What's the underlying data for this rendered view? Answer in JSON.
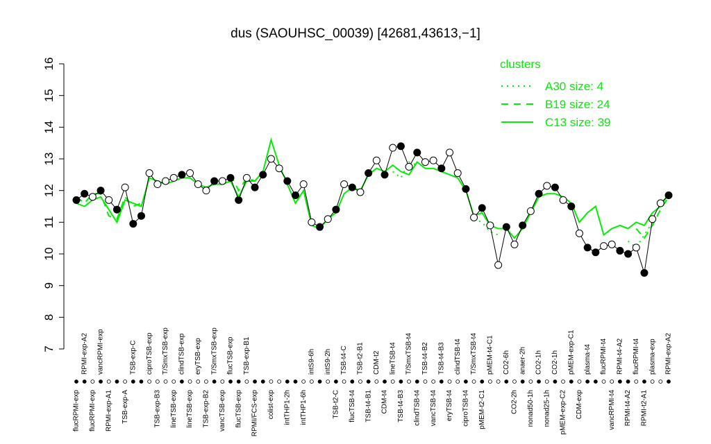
{
  "chart_data": {
    "type": "line",
    "title": "dus (SAOUHSC_00039) [42681,43613,−1]",
    "ylim": [
      7,
      16
    ],
    "yticks": [
      7,
      8,
      9,
      10,
      11,
      12,
      13,
      14,
      15,
      16
    ],
    "legend_title": "clusters",
    "legend_position": "top-right",
    "categories": [
      "flucRPMI-exp",
      "RPMI-exp-A2",
      "flucRPMI-exp",
      "vancRPMI-exp",
      "RPMI-exp-A1",
      null,
      "TSB-exp-A",
      "TSB-exp-C",
      null,
      "ciproTSB-exp",
      "TSB-exp-B3",
      "T/SmxTSB-exp",
      "lineTSB-exp",
      "clindTSB-exp",
      "lineTSB-exp",
      "eryTSB-exp",
      "TSB-exp-B2",
      "T/SmxTSB-exp",
      "vancTSB-exp",
      "flucTSB-exp",
      "flucTSB-exp",
      "TSB-exp-B1",
      "RPMI/FCS-exp",
      null,
      "colist-exp",
      null,
      "intTHP1-2h",
      null,
      "intTHP1-6h",
      "intS9-6h",
      null,
      "intS9-2h",
      "TSB-t2-C",
      "TSB-t4-C",
      "flucTSB-t4",
      "TSB-t2-B1",
      "TSB-t4-B1",
      "CDM-t2",
      "CDM-t4",
      "lineTSB-t4",
      "TSB-t4-B3",
      "T/SmxTSB-t4",
      "clindTSB-t4",
      "TSB-t4-B2",
      "vancTSB-t4",
      "TSB-t4-B3",
      "eryTSB-t4",
      "clindTSB-t4",
      "ciproTSB-t4",
      "T/SmxTSB-t4",
      "pMEM-t2-C1",
      "pMEM-t4-C1",
      null,
      "CO2-6h",
      "CO2-2h",
      "anaer-2h",
      "nonad50-1h",
      "CO2-1h",
      "nonad25-1h",
      "CO2-1h",
      "pMEM-exp-C2",
      "pMEM-exp-C1",
      "CDM-exp",
      "plasma-t4",
      null,
      "flucRPMI-t4",
      "vancRPMI-t4",
      "RPMI-t4-A2",
      "RPMI-t4-A2",
      "flucRPMI-t4",
      "RPMI-t2-A1",
      "plasma-exp",
      null,
      "RPMI-exp-A2"
    ],
    "values": [
      11.7,
      11.9,
      11.8,
      12.0,
      11.7,
      11.4,
      12.1,
      10.95,
      11.2,
      12.55,
      12.2,
      12.3,
      12.4,
      12.5,
      12.55,
      12.2,
      12.0,
      12.3,
      12.3,
      12.4,
      11.7,
      12.4,
      12.1,
      12.5,
      13.0,
      12.7,
      12.3,
      11.85,
      12.2,
      11.0,
      10.85,
      11.1,
      11.4,
      12.2,
      12.1,
      11.95,
      12.55,
      12.95,
      12.5,
      13.35,
      13.4,
      12.75,
      13.2,
      12.9,
      12.95,
      12.7,
      13.2,
      12.55,
      12.05,
      11.15,
      11.45,
      10.9,
      9.65,
      10.85,
      10.3,
      10.9,
      11.35,
      11.9,
      12.15,
      12.1,
      11.7,
      11.5,
      10.65,
      10.2,
      10.05,
      10.25,
      10.3,
      10.1,
      10.0,
      10.2,
      9.4,
      11.1,
      11.6,
      11.85
    ],
    "marker_fill": [
      "#000000",
      "#000000",
      "#ffffff",
      "#000000",
      "#ffffff",
      "#000000",
      "#ffffff",
      "#000000",
      "#000000",
      "#ffffff",
      "#ffffff",
      "#ffffff",
      "#ffffff",
      "#000000",
      "#ffffff",
      "#ffffff",
      "#ffffff",
      "#000000",
      "#ffffff",
      "#000000",
      "#000000",
      "#ffffff",
      "#000000",
      "#000000",
      "#ffffff",
      "#ffffff",
      "#000000",
      "#000000",
      "#ffffff",
      "#ffffff",
      "#000000",
      "#ffffff",
      "#000000",
      "#ffffff",
      "#000000",
      "#ffffff",
      "#000000",
      "#ffffff",
      "#000000",
      "#ffffff",
      "#000000",
      "#ffffff",
      "#000000",
      "#ffffff",
      "#ffffff",
      "#000000",
      "#ffffff",
      "#ffffff",
      "#000000",
      "#ffffff",
      "#000000",
      "#ffffff",
      "#ffffff",
      "#000000",
      "#ffffff",
      "#000000",
      "#ffffff",
      "#000000",
      "#ffffff",
      "#000000",
      "#ffffff",
      "#000000",
      "#ffffff",
      "#000000",
      "#000000",
      "#ffffff",
      "#ffffff",
      "#000000",
      "#000000",
      "#ffffff",
      "#000000",
      "#ffffff",
      "#ffffff",
      "#000000"
    ],
    "line_color": "#000000",
    "series": [
      {
        "name": "A30 size: 4",
        "color": "#00ee00",
        "dash": "dotted",
        "values": [
          null,
          null,
          null,
          null,
          null,
          null,
          null,
          null,
          null,
          null,
          null,
          null,
          null,
          null,
          null,
          null,
          null,
          null,
          null,
          null,
          null,
          null,
          null,
          null,
          null,
          null,
          null,
          null,
          null,
          null,
          null,
          null,
          null,
          null,
          null,
          null,
          null,
          null,
          null,
          12.6,
          12.4,
          12.9,
          12.8,
          null,
          null,
          null,
          null,
          null,
          null,
          11.1,
          11.0,
          10.7,
          10.6,
          null,
          null,
          null,
          null,
          null,
          null,
          null,
          null,
          null,
          null,
          null,
          null,
          null,
          null,
          null,
          10.4,
          10.2,
          10.6,
          11.0,
          null,
          null
        ]
      },
      {
        "name": "B19 size: 24",
        "color": "#00ee00",
        "dash": "dashed",
        "values": [
          11.8,
          11.6,
          11.9,
          11.9,
          11.2,
          11.1,
          11.8,
          11.5,
          11.6,
          null,
          null,
          null,
          null,
          null,
          null,
          null,
          null,
          null,
          null,
          12.5,
          12.0,
          12.4,
          12.3,
          12.6,
          null,
          null,
          null,
          null,
          null,
          null,
          null,
          null,
          null,
          null,
          null,
          null,
          null,
          null,
          null,
          null,
          null,
          null,
          null,
          null,
          null,
          null,
          null,
          null,
          null,
          null,
          null,
          null,
          null,
          null,
          null,
          null,
          null,
          null,
          null,
          null,
          null,
          null,
          null,
          null,
          null,
          null,
          null,
          null,
          null,
          10.8,
          10.5,
          10.9,
          11.4,
          11.8
        ]
      },
      {
        "name": "C13 size: 39",
        "color": "#00ee00",
        "dash": "solid",
        "values": [
          11.6,
          11.5,
          11.7,
          11.8,
          11.4,
          11.0,
          11.7,
          11.6,
          11.5,
          12.4,
          12.3,
          12.2,
          12.3,
          12.4,
          12.4,
          12.2,
          12.1,
          12.2,
          12.2,
          12.3,
          11.8,
          12.3,
          12.3,
          12.6,
          13.6,
          12.8,
          12.2,
          11.6,
          12.0,
          10.9,
          10.8,
          11.1,
          11.3,
          11.9,
          12.1,
          12.0,
          12.5,
          12.7,
          12.6,
          12.8,
          12.6,
          12.5,
          12.9,
          12.7,
          12.7,
          12.6,
          12.5,
          12.4,
          12.0,
          11.2,
          11.3,
          10.9,
          10.8,
          10.8,
          10.5,
          10.8,
          11.3,
          11.8,
          11.9,
          11.9,
          11.8,
          11.6,
          11.0,
          11.3,
          11.5,
          10.6,
          10.8,
          10.9,
          10.8,
          11.0,
          10.9,
          11.3,
          11.5,
          11.9
        ]
      }
    ]
  }
}
